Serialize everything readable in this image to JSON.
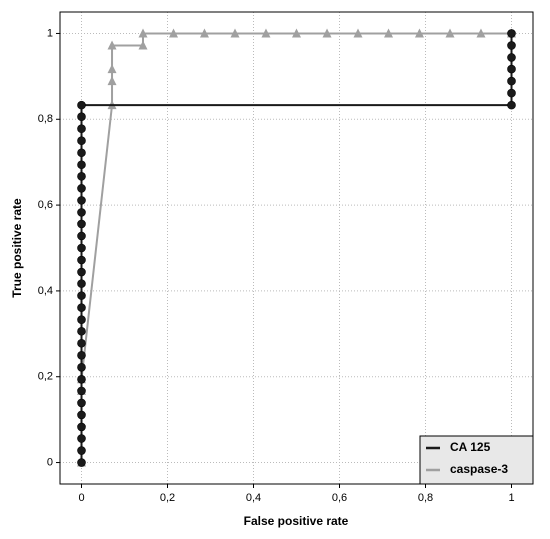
{
  "chart_data": {
    "type": "line",
    "x_label": "False positive rate",
    "y_label": "True positive rate",
    "xlim": [
      -0.05,
      1.05
    ],
    "ylim": [
      -0.05,
      1.05
    ],
    "xticks": [
      0,
      {
        "value": 0.2,
        "label": "0,2"
      },
      {
        "value": 0.4,
        "label": "0,4"
      },
      {
        "value": 0.6,
        "label": "0,6"
      },
      {
        "value": 0.8,
        "label": "0,8"
      },
      1
    ],
    "yticks": [
      0,
      {
        "value": 0.2,
        "label": "0,2"
      },
      {
        "value": 0.4,
        "label": "0,4"
      },
      {
        "value": 0.6,
        "label": "0,6"
      },
      {
        "value": 0.8,
        "label": "0,8"
      },
      1
    ],
    "grid": true,
    "legend": "lower right",
    "series": [
      {
        "name": "caspase-3",
        "color": "#a0a0a0",
        "marker": "triangle",
        "x": [
          0,
          0,
          0,
          0.071,
          0.071,
          0.071,
          0.071,
          0.143,
          0.143,
          0.214,
          0.286,
          0.357,
          0.429,
          0.5,
          0.571,
          0.643,
          0.714,
          0.786,
          0.857,
          0.929,
          1
        ],
        "values": [
          0,
          0.167,
          0.194,
          0.833,
          0.889,
          0.917,
          0.972,
          0.972,
          1,
          1,
          1,
          1,
          1,
          1,
          1,
          1,
          1,
          1,
          1,
          1,
          1
        ]
      },
      {
        "name": "CA 125",
        "color": "#1a1a1a",
        "marker": "circle",
        "x": [
          0,
          0,
          0,
          0,
          0,
          0,
          0,
          0,
          0,
          0,
          0,
          0,
          0,
          0,
          0,
          0,
          0,
          0,
          0,
          0,
          0,
          0,
          0,
          0,
          0,
          0,
          0,
          0,
          0,
          0,
          0,
          1,
          1,
          1,
          1,
          1,
          1,
          1
        ],
        "values": [
          0,
          0.028,
          0.056,
          0.083,
          0.111,
          0.139,
          0.167,
          0.194,
          0.222,
          0.25,
          0.278,
          0.306,
          0.333,
          0.361,
          0.389,
          0.417,
          0.444,
          0.472,
          0.5,
          0.528,
          0.556,
          0.583,
          0.611,
          0.639,
          0.667,
          0.694,
          0.722,
          0.75,
          0.778,
          0.806,
          0.833,
          0.833,
          0.861,
          0.889,
          0.917,
          0.944,
          0.972,
          1
        ]
      }
    ]
  }
}
